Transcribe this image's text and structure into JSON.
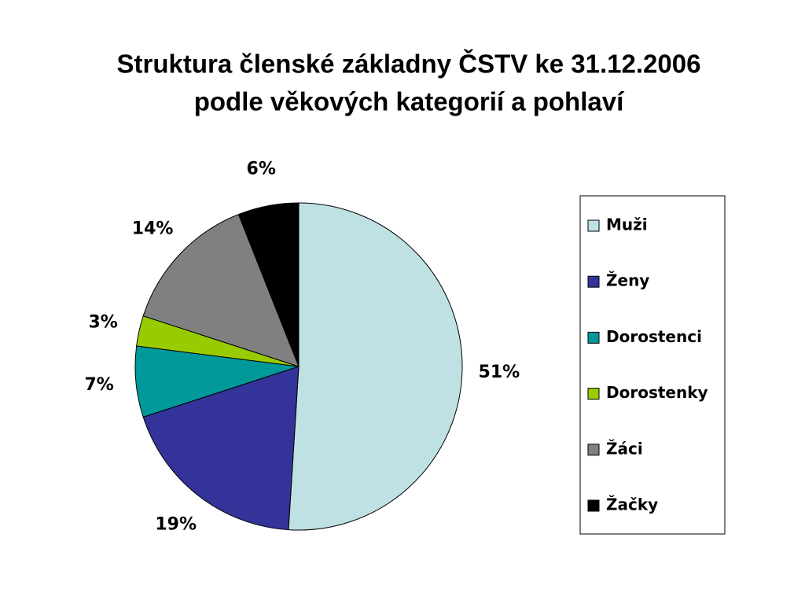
{
  "chart_data": {
    "type": "pie",
    "title": [
      "Struktura členské základny ČSTV ke 31.12.2006",
      "podle věkových kategorií a pohlaví"
    ],
    "categories": [
      "Muži",
      "Ženy",
      "Dorostenci",
      "Dorostenky",
      "Žáci",
      "Žačky"
    ],
    "values": [
      51,
      19,
      7,
      3,
      14,
      6
    ],
    "value_labels": [
      "51%",
      "19%",
      "7%",
      "3%",
      "14%",
      "6%"
    ],
    "colors": [
      "#bfe1e4",
      "#333399",
      "#009999",
      "#99cc00",
      "#808080",
      "#000000"
    ],
    "legend": "right"
  }
}
